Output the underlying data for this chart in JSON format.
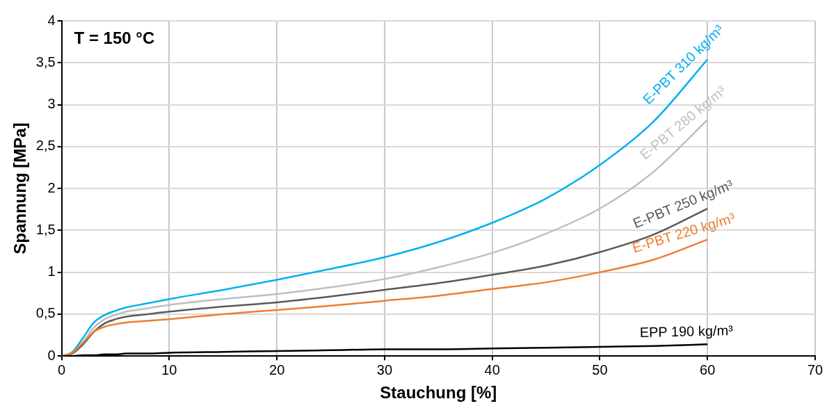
{
  "chart_data": {
    "type": "line",
    "xlabel": "Stauchung [%]",
    "ylabel": "Spannung [MPa]",
    "annotations": [
      "T = 150 °C"
    ],
    "x": [
      0,
      1,
      2,
      3,
      4,
      5,
      6,
      8,
      10,
      15,
      20,
      25,
      30,
      35,
      40,
      45,
      50,
      55,
      60
    ],
    "series": [
      {
        "name": "E-PBT 310 kg/m³",
        "color": "#00b0f0",
        "values": [
          0,
          0.05,
          0.22,
          0.4,
          0.49,
          0.54,
          0.58,
          0.63,
          0.68,
          0.79,
          0.91,
          1.04,
          1.18,
          1.36,
          1.59,
          1.88,
          2.28,
          2.8,
          3.54
        ]
      },
      {
        "name": "E-PBT 280 kg/m³",
        "color": "#bfbfbf",
        "values": [
          0,
          0.04,
          0.17,
          0.34,
          0.44,
          0.49,
          0.53,
          0.57,
          0.61,
          0.68,
          0.74,
          0.82,
          0.92,
          1.06,
          1.23,
          1.46,
          1.76,
          2.2,
          2.82
        ]
      },
      {
        "name": "E-PBT 250 kg/m³",
        "color": "#595959",
        "values": [
          0,
          0.03,
          0.14,
          0.29,
          0.39,
          0.44,
          0.47,
          0.5,
          0.53,
          0.59,
          0.64,
          0.71,
          0.79,
          0.87,
          0.97,
          1.08,
          1.24,
          1.45,
          1.76
        ]
      },
      {
        "name": "E-PBT 220 kg/m³",
        "color": "#ed7d31",
        "values": [
          0,
          0.04,
          0.16,
          0.29,
          0.35,
          0.38,
          0.4,
          0.42,
          0.44,
          0.5,
          0.55,
          0.6,
          0.66,
          0.72,
          0.8,
          0.88,
          1.0,
          1.15,
          1.39
        ]
      },
      {
        "name": "EPP 190 kg/m³",
        "color": "#000000",
        "values": [
          0,
          0,
          0.01,
          0.01,
          0.02,
          0.02,
          0.03,
          0.03,
          0.04,
          0.05,
          0.06,
          0.07,
          0.08,
          0.08,
          0.09,
          0.1,
          0.11,
          0.12,
          0.14
        ]
      }
    ],
    "xlim": [
      0,
      70
    ],
    "xticks": [
      0,
      10,
      20,
      30,
      40,
      50,
      60,
      70
    ],
    "ylim": [
      0,
      4
    ],
    "yticks": [
      0,
      {
        "value": 0.5,
        "label": "0,5"
      },
      1,
      {
        "value": 1.5,
        "label": "1,5"
      },
      2,
      {
        "value": 2.5,
        "label": "2,5"
      },
      3,
      {
        "value": 3.5,
        "label": "3,5"
      },
      4
    ],
    "grid": true,
    "legend": false,
    "marker": "none",
    "line_style": "solid"
  }
}
